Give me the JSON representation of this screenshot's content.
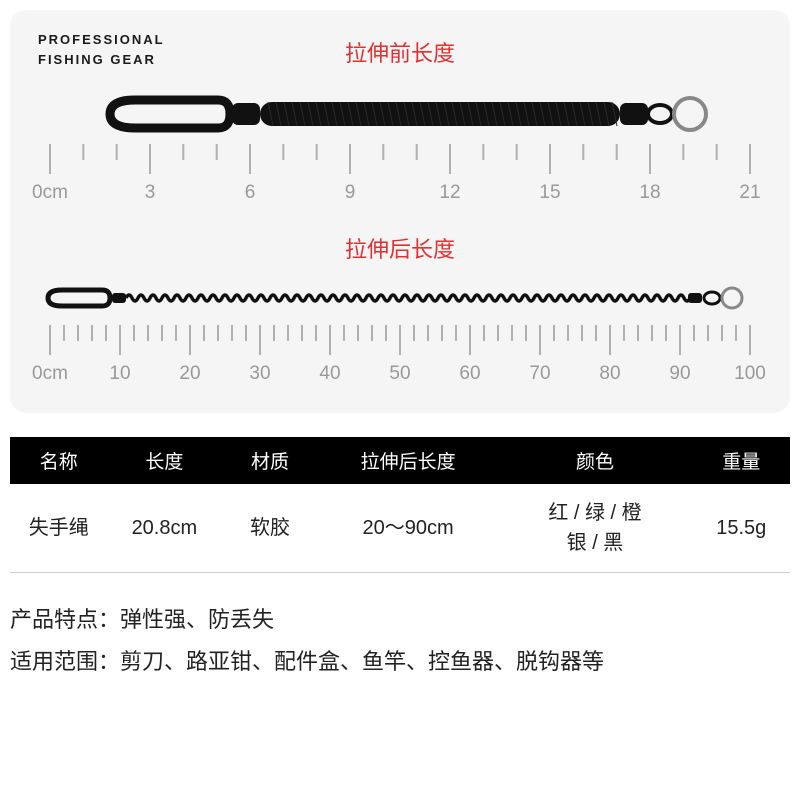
{
  "brand_line1": "PROFESSIONAL",
  "brand_line2": "FISHING GEAR",
  "label_before": "拉伸前长度",
  "label_after": "拉伸后长度",
  "ruler1": {
    "start": 0,
    "end": 21,
    "major_step": 3,
    "minor_per_major": 3,
    "tick_color": "#b0b0b0",
    "label_color": "#999999",
    "label_fontsize": 19,
    "unit_prefix": "0cm"
  },
  "ruler2": {
    "start": 0,
    "end": 100,
    "major_step": 10,
    "minor_per_major": 5,
    "tick_color": "#b0b0b0",
    "label_color": "#999999",
    "label_fontsize": 19,
    "unit_prefix": "0cm"
  },
  "lanyard": {
    "cord_color": "#111111",
    "clip_color": "#111111",
    "ring_color": "#888888"
  },
  "table": {
    "columns": [
      "名称",
      "长度",
      "材质",
      "拉伸后长度",
      "颜色",
      "重量"
    ],
    "col_widths_pct": [
      12,
      14,
      12,
      22,
      24,
      12
    ],
    "row": {
      "name": "失手绳",
      "length": "20.8cm",
      "material": "软胶",
      "stretched": "20～90cm",
      "colors_line1": "红 / 绿 / 橙",
      "colors_line2": "银 / 黑",
      "weight": "15.5g"
    }
  },
  "detail_lines": [
    "产品特点：弹性强、防丢失",
    "适用范围：剪刀、路亚钳、配件盒、鱼竿、控鱼器、脱钩器等"
  ],
  "colors": {
    "panel_bg": "#f5f5f5",
    "accent_red": "#e03030",
    "text": "#222222"
  }
}
